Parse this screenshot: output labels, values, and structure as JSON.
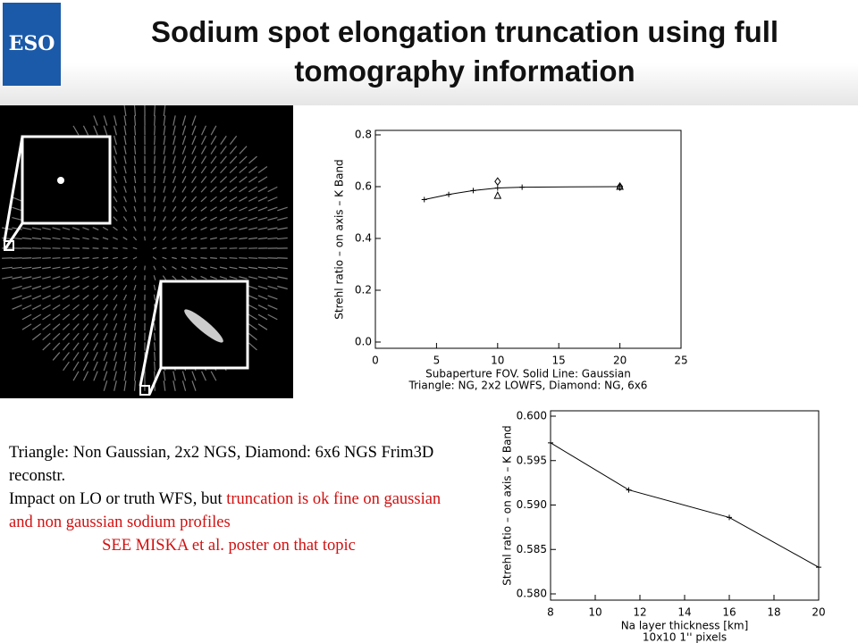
{
  "header": {
    "logo": "ESO",
    "title_line1": "Sodium spot elongation truncation using full",
    "title_line2": "tomography information"
  },
  "chart_data": [
    {
      "type": "line",
      "ylabel": "Strehl ratio – on axis – K Band",
      "xlabel_line1": "Subaperture FOV. Solid Line: Gaussian",
      "xlabel_line2": "Triangle: NG, 2x2 LOWFS, Diamond: NG, 6x6",
      "xlim": [
        0,
        25
      ],
      "xticks": [
        0,
        5,
        10,
        15,
        20,
        25
      ],
      "ylim": [
        0,
        0.8
      ],
      "yticks": [
        {
          "value": 0,
          "label": "0.0"
        },
        0.2,
        0.4,
        0.6,
        0.8
      ],
      "color": "#000000",
      "series": [
        {
          "marker": "plus",
          "line": true,
          "x": [
            4,
            6,
            8,
            10,
            12,
            20
          ],
          "values": [
            0.55,
            0.57,
            0.585,
            0.595,
            0.598,
            0.6
          ]
        },
        {
          "marker": "triangle",
          "line": false,
          "x": [
            10,
            20
          ],
          "values": [
            0.565,
            0.6
          ]
        },
        {
          "marker": "diamond",
          "line": false,
          "x": [
            10,
            20
          ],
          "values": [
            0.62,
            0.6
          ]
        }
      ]
    },
    {
      "type": "line",
      "ylabel": "Strehl ratio – on axis – K Band",
      "xlabel_line1": "Na layer thickness [km]",
      "xlabel_line2": "10x10 1'' pixels",
      "xlim": [
        8,
        20
      ],
      "xticks": [
        8,
        10,
        12,
        14,
        16,
        18,
        20
      ],
      "ylim": [
        0.58,
        0.6
      ],
      "yticks": [
        {
          "value": 0.58,
          "label": "0.580"
        },
        0.585,
        {
          "value": 0.59,
          "label": "0.590"
        },
        0.595,
        {
          "value": 0.6,
          "label": "0.600"
        }
      ],
      "color": "#000000",
      "series": [
        {
          "marker": "plus",
          "line": true,
          "x": [
            8,
            11.5,
            16,
            20
          ],
          "values": [
            0.597,
            0.5917,
            0.5886,
            0.583
          ]
        }
      ]
    }
  ],
  "note": {
    "p1": "Triangle: Non Gaussian, 2x2 NGS, Diamond: 6x6 NGS Frim3D reconstr.",
    "p2_black": "Impact on LO or truth WFS, but ",
    "p2_red": "truncation is ok fine on gaussian and non gaussian sodium profiles",
    "p3": "SEE MISKA et al. poster on that topic"
  }
}
